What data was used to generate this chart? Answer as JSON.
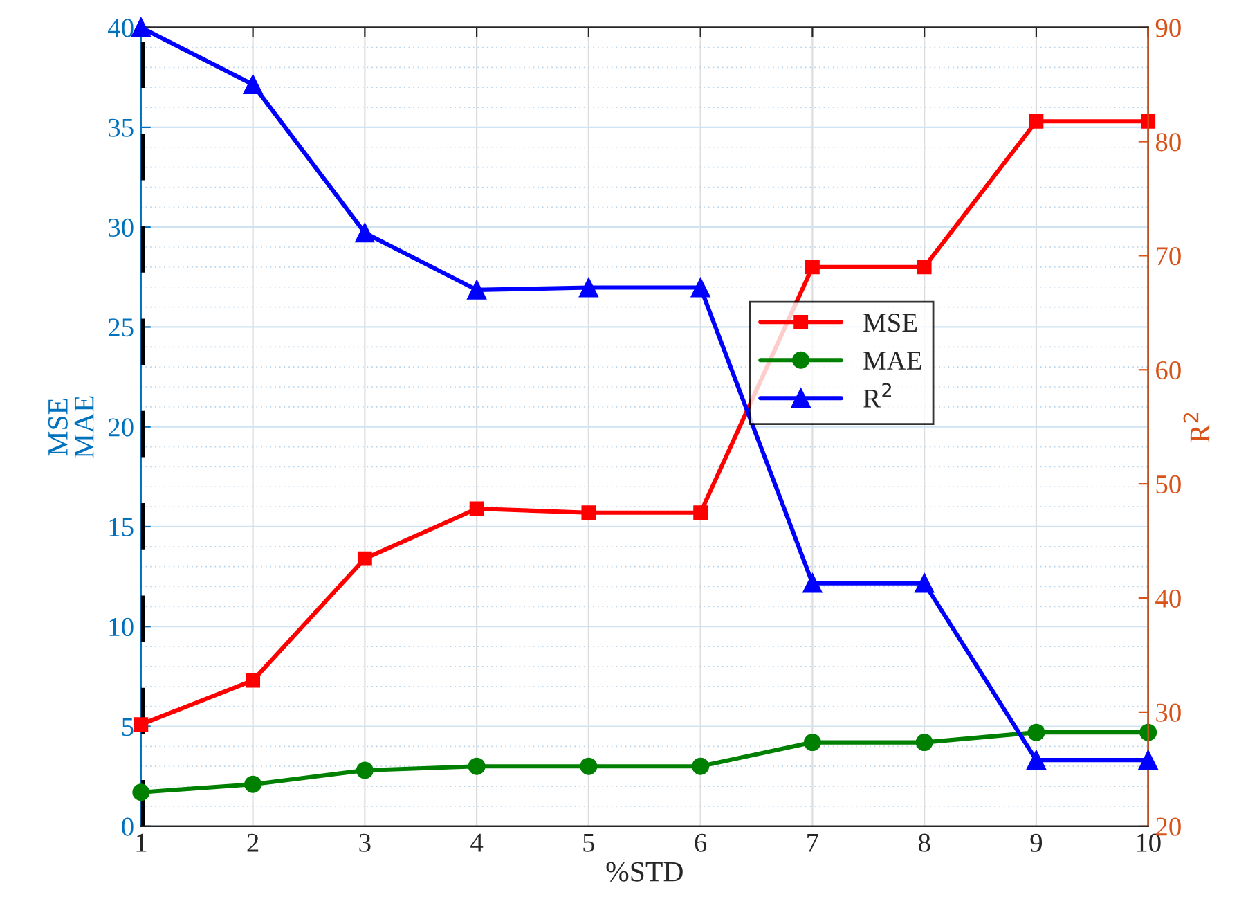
{
  "chart_data": {
    "type": "line",
    "xlabel": "%STD",
    "ylabel": "MSE\nMAE",
    "y2label": "R$^{2}$",
    "x": [
      1,
      2,
      3,
      4,
      5,
      6,
      7,
      8,
      9,
      10
    ],
    "series": [
      {
        "name": "MSE",
        "color": "#ff0000",
        "marker": "square",
        "values": [
          5.1,
          7.3,
          13.4,
          15.9,
          15.7,
          15.7,
          28.0,
          28.0,
          35.3,
          35.3
        ]
      },
      {
        "name": "MAE",
        "color": "#008000",
        "marker": "circle",
        "values": [
          1.7,
          2.1,
          2.8,
          3.0,
          3.0,
          3.0,
          4.2,
          4.2,
          4.7,
          4.7
        ]
      },
      {
        "name": "R$^{2}$",
        "color": "#0000ff",
        "marker": "triangle",
        "axis": "y2",
        "values": [
          90,
          85,
          72,
          67,
          67.2,
          67.2,
          41.3,
          41.3,
          25.8,
          25.8
        ]
      }
    ],
    "xlim": [
      1,
      10
    ],
    "xticks": [
      1,
      2,
      3,
      4,
      5,
      6,
      7,
      8,
      9,
      10
    ],
    "ylim": [
      0,
      40
    ],
    "yticks": [
      0,
      5,
      10,
      15,
      20,
      25,
      30,
      35,
      40
    ],
    "y2lim": [
      20,
      90
    ],
    "y2ticks": [
      20,
      30,
      40,
      50,
      60,
      70,
      80,
      90
    ],
    "ref_lines": [
      {
        "axis": "x",
        "value": 1,
        "color": "#000000",
        "line_style": "dashed"
      }
    ],
    "grid": true,
    "legend": "right",
    "line_style": "solid"
  }
}
